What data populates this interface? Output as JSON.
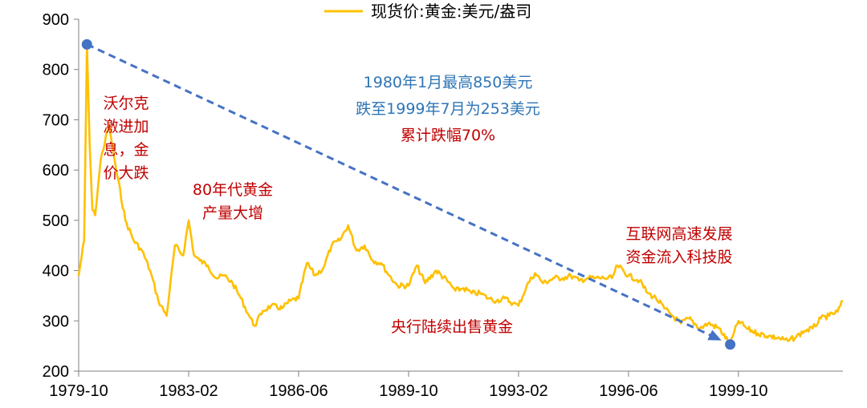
{
  "chart_data": {
    "type": "line",
    "series": [
      {
        "name": "现货价:黄金:美元/盎司",
        "color": "#FFC000",
        "points": [
          [
            "1979-10",
            390
          ],
          [
            "1979-12",
            460
          ],
          [
            "1980-01",
            850
          ],
          [
            "1980-02",
            650
          ],
          [
            "1980-03",
            520
          ],
          [
            "1980-04",
            510
          ],
          [
            "1980-06",
            620
          ],
          [
            "1980-09",
            690
          ],
          [
            "1980-12",
            590
          ],
          [
            "1981-03",
            500
          ],
          [
            "1981-06",
            460
          ],
          [
            "1981-09",
            440
          ],
          [
            "1981-12",
            400
          ],
          [
            "1982-03",
            340
          ],
          [
            "1982-06",
            310
          ],
          [
            "1982-09",
            450
          ],
          [
            "1982-12",
            430
          ],
          [
            "1983-02",
            500
          ],
          [
            "1983-04",
            430
          ],
          [
            "1983-06",
            420
          ],
          [
            "1983-09",
            410
          ],
          [
            "1983-12",
            385
          ],
          [
            "1984-03",
            390
          ],
          [
            "1984-06",
            375
          ],
          [
            "1984-09",
            345
          ],
          [
            "1984-12",
            310
          ],
          [
            "1985-02",
            290
          ],
          [
            "1985-05",
            320
          ],
          [
            "1985-08",
            330
          ],
          [
            "1985-12",
            325
          ],
          [
            "1986-03",
            340
          ],
          [
            "1986-06",
            345
          ],
          [
            "1986-09",
            415
          ],
          [
            "1986-12",
            390
          ],
          [
            "1987-03",
            405
          ],
          [
            "1987-06",
            450
          ],
          [
            "1987-09",
            460
          ],
          [
            "1987-12",
            490
          ],
          [
            "1988-03",
            440
          ],
          [
            "1988-06",
            450
          ],
          [
            "1988-09",
            420
          ],
          [
            "1988-12",
            415
          ],
          [
            "1989-03",
            390
          ],
          [
            "1989-06",
            370
          ],
          [
            "1989-10",
            370
          ],
          [
            "1990-01",
            410
          ],
          [
            "1990-04",
            375
          ],
          [
            "1990-08",
            400
          ],
          [
            "1990-12",
            380
          ],
          [
            "1991-03",
            360
          ],
          [
            "1991-06",
            365
          ],
          [
            "1991-09",
            355
          ],
          [
            "1991-12",
            355
          ],
          [
            "1992-03",
            345
          ],
          [
            "1992-06",
            340
          ],
          [
            "1992-09",
            345
          ],
          [
            "1992-12",
            335
          ],
          [
            "1993-02",
            330
          ],
          [
            "1993-05",
            370
          ],
          [
            "1993-08",
            395
          ],
          [
            "1993-11",
            375
          ],
          [
            "1994-03",
            385
          ],
          [
            "1994-06",
            385
          ],
          [
            "1994-09",
            390
          ],
          [
            "1994-12",
            380
          ],
          [
            "1995-03",
            385
          ],
          [
            "1995-06",
            385
          ],
          [
            "1995-09",
            385
          ],
          [
            "1995-12",
            385
          ],
          [
            "1996-02",
            410
          ],
          [
            "1996-06",
            390
          ],
          [
            "1996-10",
            380
          ],
          [
            "1997-01",
            355
          ],
          [
            "1997-04",
            345
          ],
          [
            "1997-07",
            325
          ],
          [
            "1997-10",
            310
          ],
          [
            "1998-01",
            295
          ],
          [
            "1998-04",
            305
          ],
          [
            "1998-08",
            285
          ],
          [
            "1998-11",
            295
          ],
          [
            "1999-03",
            285
          ],
          [
            "1999-07",
            253
          ],
          [
            "1999-10",
            300
          ],
          [
            "2000-01",
            285
          ],
          [
            "2000-05",
            275
          ],
          [
            "2000-09",
            270
          ],
          [
            "2001-01",
            265
          ],
          [
            "2001-04",
            260
          ],
          [
            "2001-07",
            268
          ],
          [
            "2001-10",
            280
          ],
          [
            "2002-01",
            285
          ],
          [
            "2002-04",
            305
          ],
          [
            "2002-07",
            310
          ],
          [
            "2002-10",
            318
          ],
          [
            "2002-12",
            340
          ]
        ]
      }
    ],
    "x_ticks": [
      "1979-10",
      "1983-02",
      "1986-06",
      "1989-10",
      "1993-02",
      "1996-06",
      "1999-10"
    ],
    "y_ticks": [
      200,
      300,
      400,
      500,
      600,
      700,
      800,
      900
    ],
    "ylim": [
      200,
      900
    ],
    "x_range": [
      "1979-10",
      "2002-12"
    ],
    "legend_position": "top",
    "trend_arrow": {
      "from": [
        "1980-01",
        850
      ],
      "to": [
        "1999-07",
        253
      ],
      "color": "#4472C4"
    },
    "annotations": [
      {
        "lines": [
          "沃尔克",
          "激进加",
          "息，金",
          "价大跌"
        ],
        "color": "#C00000"
      },
      {
        "lines": [
          "80年代黄金",
          "产量大增"
        ],
        "color": "#C00000"
      },
      {
        "lines": [
          "1980年1月最高850美元",
          "跌至1999年7月为253美元"
        ],
        "color": "#2E75B6"
      },
      {
        "lines": [
          "累计跌幅70%"
        ],
        "color": "#C00000"
      },
      {
        "lines": [
          "互联网高速发展",
          "资金流入科技股"
        ],
        "color": "#C00000"
      },
      {
        "lines": [
          "央行陆续出售黄金"
        ],
        "color": "#C00000"
      }
    ]
  }
}
